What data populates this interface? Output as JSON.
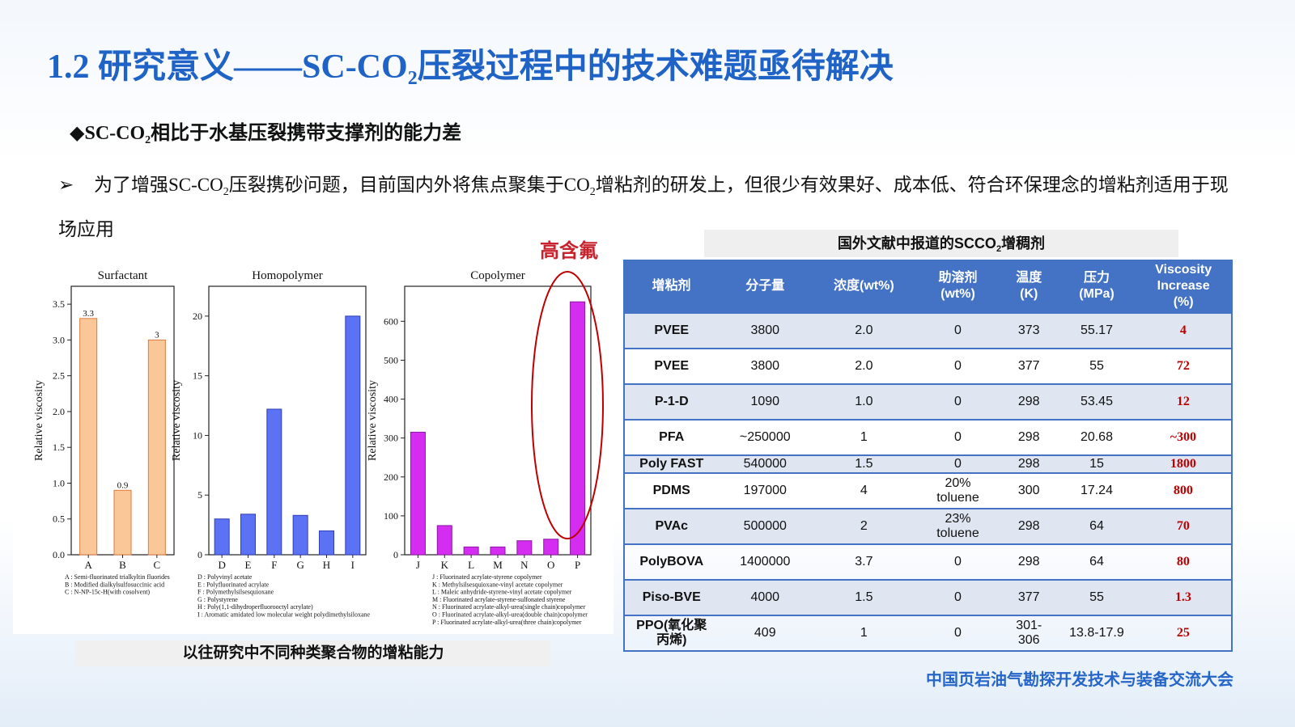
{
  "title": {
    "prefix": "1.2 研究意义——SC-CO",
    "sub": "2",
    "suffix": "压裂过程中的技术难题亟待解决"
  },
  "bullet1": {
    "marker": "◆",
    "prefix": "SC-CO",
    "sub": "2",
    "suffix": "相比于水基压裂携带支撑剂的能力差"
  },
  "paragraph": {
    "arrow": "➢",
    "part1": "为了增强SC-CO",
    "sub1": "2",
    "part2": "压裂携砂问题，目前国内外将焦点聚集于CO",
    "sub2": "2",
    "part3": "增粘剂的研发上，但很少有效果好、成本低、符合环保理念的增粘剂适用于现场应用"
  },
  "highlight_label": "高含氟",
  "figure_caption": "以往研究中不同种类聚合物的增粘能力",
  "table_caption": {
    "prefix": "国外文献中报道的SCCO",
    "sub": "2",
    "suffix": "增稠剂"
  },
  "table": {
    "headers": [
      "增粘剂",
      "分子量",
      "浓度(wt%)",
      "助溶剂\n(wt%)",
      "温度\n(K)",
      "压力\n(MPa)",
      "Viscosity\nIncrease\n(%)"
    ],
    "rows": [
      [
        "PVEE",
        "3800",
        "2.0",
        "0",
        "373",
        "55.17",
        "4"
      ],
      [
        "PVEE",
        "3800",
        "2.0",
        "0",
        "377",
        "55",
        "72"
      ],
      [
        "P-1-D",
        "1090",
        "1.0",
        "0",
        "298",
        "53.45",
        "12"
      ],
      [
        "PFA",
        "~250000",
        "1",
        "0",
        "298",
        "20.68",
        "~300"
      ],
      [
        "Poly FAST",
        "540000",
        "1.5",
        "0",
        "298",
        "15",
        "1800"
      ],
      [
        "PDMS",
        "197000",
        "4",
        "20%\ntoluene",
        "300",
        "17.24",
        "800"
      ],
      [
        "PVAc",
        "500000",
        "2",
        "23%\ntoluene",
        "298",
        "64",
        "70"
      ],
      [
        "PolyBOVA",
        "1400000",
        "3.7",
        "0",
        "298",
        "64",
        "80"
      ],
      [
        "Piso-BVE",
        "4000",
        "1.5",
        "0",
        "377",
        "55",
        "1.3"
      ],
      [
        "PPO(氧化聚\n丙烯)",
        "409",
        "1",
        "0",
        "301-\n306",
        "13.8-17.9",
        "25"
      ]
    ]
  },
  "footer": "中国页岩油气勘探开发技术与装备交流大会",
  "colors": {
    "title": "#1f63c6",
    "table_header": "#4472c4",
    "highlight": "#c8222d",
    "surfactant": "#fac898",
    "homopolymer": "#5b72f5",
    "copolymer": "#d42cf0"
  },
  "chart_data": [
    {
      "type": "bar",
      "title": "Surfactant",
      "ylabel": "Relative viscosity",
      "categories": [
        "A",
        "B",
        "C"
      ],
      "values": [
        3.3,
        0.9,
        3.0
      ],
      "data_labels": [
        "3.3",
        "0.9",
        "3"
      ],
      "ylim": [
        0,
        3.75
      ],
      "yticks": [
        "0.0",
        "0.5",
        "1.0",
        "1.5",
        "2.0",
        "2.5",
        "3.0",
        "3.5"
      ],
      "ytick_values": [
        0,
        0.5,
        1.0,
        1.5,
        2.0,
        2.5,
        3.0,
        3.5
      ],
      "legend_lines": [
        "A : Semi-fluorinated trialkyltin fluorides",
        "B : Modified dialkylsulfosuccinic acid",
        "C : N-NP-15c-H(with cosolvent)"
      ]
    },
    {
      "type": "bar",
      "title": "Homopolymer",
      "ylabel": "Relative viscosity",
      "categories": [
        "D",
        "E",
        "F",
        "G",
        "H",
        "I"
      ],
      "values": [
        3.0,
        3.4,
        12.2,
        3.3,
        2.0,
        20.0
      ],
      "ylim": [
        0,
        22.5
      ],
      "yticks": [
        "0",
        "5",
        "10",
        "15",
        "20"
      ],
      "ytick_values": [
        0,
        5,
        10,
        15,
        20
      ],
      "legend_lines": [
        "D : Polyvinyl acetate",
        "E : Polyfluorinated acrylate",
        "F : Polymethylsilsesquioxane",
        "G : Polystyrene",
        "H : Poly(1,1-dihydroperfluorooctyl acrylate)",
        "I : Aromatic amidated low molecular weight polydimethylsiloxane"
      ]
    },
    {
      "type": "bar",
      "title": "Copolymer",
      "ylabel": "Relative viscosity",
      "categories": [
        "J",
        "K",
        "L",
        "M",
        "N",
        "O",
        "P"
      ],
      "values": [
        315,
        75,
        20,
        20,
        36,
        40,
        650
      ],
      "ylim": [
        0,
        690
      ],
      "yticks": [
        "0",
        "100",
        "200",
        "300",
        "400",
        "500",
        "600"
      ],
      "ytick_values": [
        0,
        100,
        200,
        300,
        400,
        500,
        600
      ],
      "legend_lines": [
        "J : Fluorinated acrylate-styrene copolymer",
        "K : Methylsilsesquioxane-vinyl acetate copolymer",
        "L : Maleic anhydride-styrene-vinyl acetate copolymer",
        "M : Fluorinated acrylate-styrene-sulfonated styrene",
        "N : Fluorinated acrylate-alkyl-urea(single chain)copolymer",
        "O : Fluorinated acrylate-alkyl-urea(double chain)copolymer",
        "P : Fluorinated acrylate-alkyl-urea(three chain)copolymer"
      ]
    }
  ]
}
